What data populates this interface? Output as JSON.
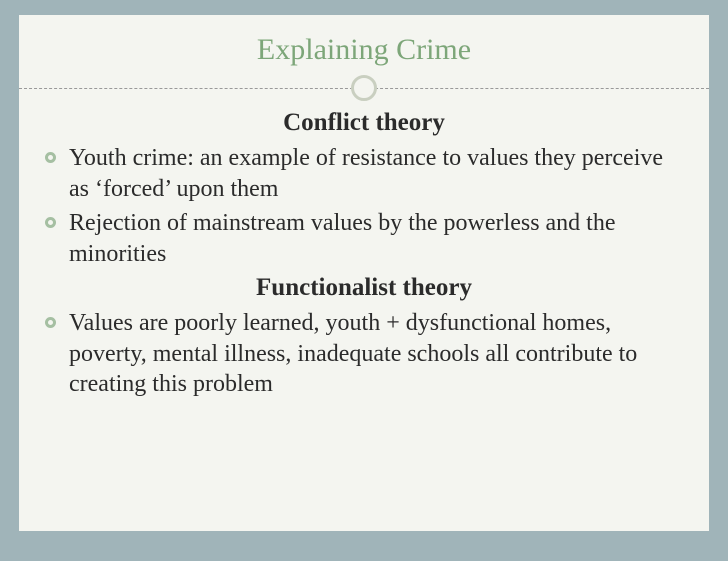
{
  "colors": {
    "page_background": "#a0b4b9",
    "slide_background": "#f4f5f0",
    "title_color": "#7da679",
    "body_text": "#2b2b2b",
    "bullet_ring": "#a5bfa2",
    "divider_dash": "#999999",
    "divider_circle_border": "#c9cfc0"
  },
  "typography": {
    "title_fontsize": 30,
    "subhead_fontsize": 25,
    "body_fontsize": 24,
    "font_family": "Georgia"
  },
  "title": "Explaining Crime",
  "sections": [
    {
      "heading": "Conflict theory",
      "bullets": [
        "Youth crime: an example of resistance to values they perceive as ‘forced’ upon them",
        "Rejection of mainstream values by the powerless and the minorities"
      ]
    },
    {
      "heading": "Functionalist theory",
      "bullets": [
        "Values are poorly learned, youth + dysfunctional homes, poverty, mental illness, inadequate schools all contribute to creating this problem"
      ]
    }
  ]
}
